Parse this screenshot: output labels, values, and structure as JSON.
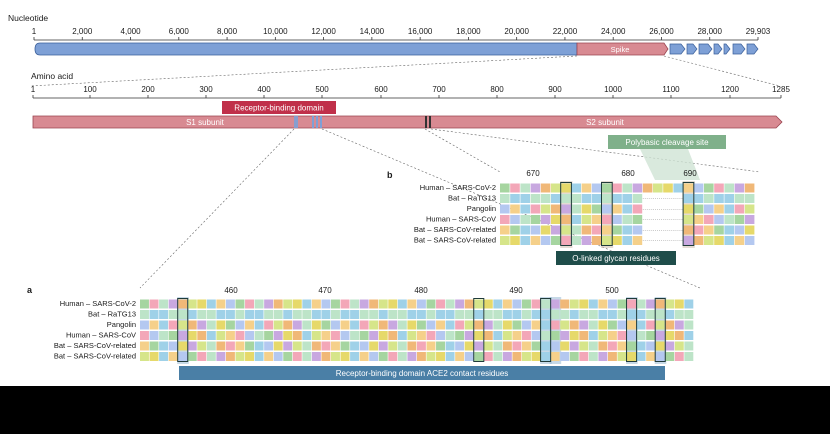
{
  "nucleotide": {
    "title": "Nucleotide",
    "ticks": [
      "1",
      "2,000",
      "4,000",
      "6,000",
      "8,000",
      "10,000",
      "12,000",
      "14,000",
      "16,000",
      "18,000",
      "20,000",
      "22,000",
      "24,000",
      "26,000",
      "28,000",
      "29,903"
    ],
    "spike_label": "Spike"
  },
  "amino_acid": {
    "title": "Amino acid",
    "ticks": [
      "1",
      "100",
      "200",
      "300",
      "400",
      "500",
      "600",
      "700",
      "800",
      "900",
      "1000",
      "1100",
      "1200",
      "1285"
    ],
    "rbd_label": "Receptor-binding domain",
    "s1_label": "S1 subunit",
    "s2_label": "S2 subunit"
  },
  "panel_b": {
    "letter": "b",
    "site_label": "Polybasic cleavage site",
    "positions": [
      "670",
      "680",
      "690"
    ],
    "species": [
      "Human – SARS-CoV-2",
      "Bat – RaTG13",
      "Pangolin",
      "Human – SARS-CoV",
      "Bat – SARS-CoV-related",
      "Bat – SARS-CoV-related"
    ],
    "glycan_label": "O-linked glycan residues"
  },
  "panel_a": {
    "letter": "a",
    "positions": [
      "460",
      "470",
      "480",
      "490",
      "500"
    ],
    "species": [
      "Human – SARS-CoV-2",
      "Bat – RaTG13",
      "Pangolin",
      "Human – SARS-CoV",
      "Bat – SARS-CoV-related",
      "Bat – SARS-CoV-related"
    ],
    "contact_label": "Receptor-binding domain ACE2 contact residues"
  },
  "colors": {
    "blue_gene": "#7ea0d6",
    "spike": "#d88a92",
    "rbd": "#c0304a",
    "cleavage_green": "#7fb08a",
    "glycan_bar": "#1f4d4a",
    "contact_bar": "#4a7fa6"
  }
}
